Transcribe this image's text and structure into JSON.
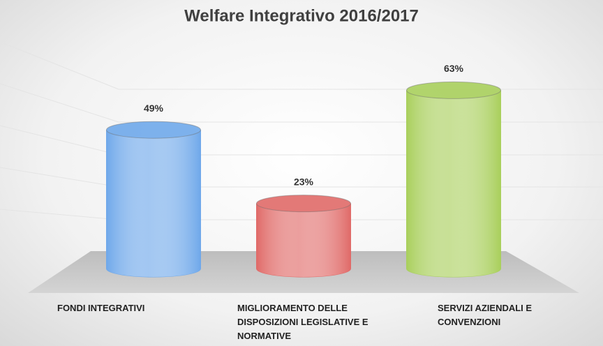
{
  "chart_data": {
    "type": "cylinder",
    "title": "Welfare Integrativo 2016/2017",
    "categories": [
      "FONDI INTEGRATIVI",
      "MIGLIORAMENTO DELLE DISPOSIZIONI LEGISLATIVE E NORMATIVE",
      "SERVIZI AZIENDALI E CONVENZIONI"
    ],
    "values": [
      49,
      23,
      63
    ],
    "value_labels": [
      "49%",
      "23%",
      "63%"
    ],
    "colors": [
      "#6fa8ea",
      "#e06a68",
      "#a9cf5c"
    ],
    "ylim": [
      0,
      70
    ]
  }
}
